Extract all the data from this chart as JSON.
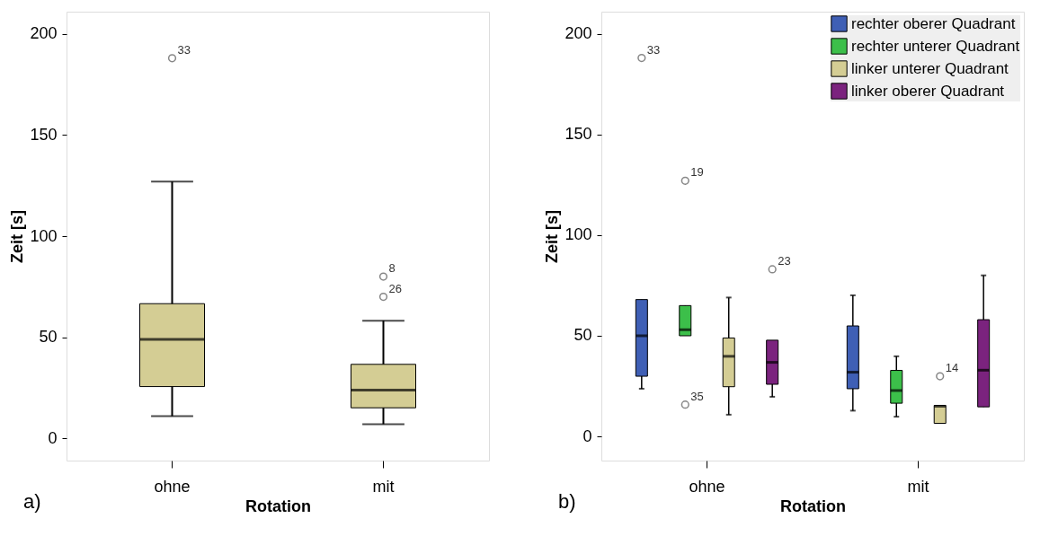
{
  "chart_data": [
    {
      "type": "box",
      "categories": [
        "ohne",
        "mit"
      ],
      "xlabel": "Rotation",
      "ylabel": "Zeit [s]",
      "ylim": [
        -11,
        211
      ],
      "yticks": [
        0,
        50,
        100,
        150,
        200
      ],
      "grid": false,
      "legend": false,
      "series": [
        {
          "color": "#d4cd94",
          "boxes": [
            {
              "low": 11,
              "q1": 25.6,
              "median": 48.9,
              "q3": 66.6,
              "high": 127,
              "outliers": [
                188
              ]
            },
            {
              "low": 7,
              "q1": 15.1,
              "median": 23.8,
              "q3": 36.6,
              "high": 58.2,
              "outliers": [
                80,
                70
              ]
            }
          ]
        }
      ],
      "annotations": [
        "33",
        "8",
        "26",
        "a)"
      ]
    },
    {
      "type": "box",
      "categories": [
        "ohne",
        "mit"
      ],
      "xlabel": "Rotation",
      "ylabel": "Zeit [s]",
      "ylim": [
        -12,
        211
      ],
      "yticks": [
        0,
        50,
        100,
        150,
        200
      ],
      "grid": false,
      "legend": "top right",
      "series": [
        {
          "name": "rechter oberer Quadrant",
          "color": "#3f5fb5",
          "boxes": [
            {
              "low": 23.7,
              "q1": 29.9,
              "median": 50,
              "q3": 68,
              "high": 68,
              "outliers": [
                188
              ]
            },
            {
              "low": 12.8,
              "q1": 23.7,
              "median": 31.9,
              "q3": 54.9,
              "high": 70.1
            }
          ]
        },
        {
          "name": "rechter unterer Quadrant",
          "color": "#3cbf4a",
          "boxes": [
            {
              "low": 50,
              "q1": 50,
              "median": 53,
              "q3": 65,
              "high": 65,
              "outliers": [
                127,
                15.8
              ]
            },
            {
              "low": 9.8,
              "q1": 16.5,
              "median": 22.8,
              "q3": 32.8,
              "high": 39.8
            }
          ]
        },
        {
          "name": "linker unterer Quadrant",
          "color": "#d4cd94",
          "boxes": [
            {
              "low": 10.8,
              "q1": 24.7,
              "median": 39.8,
              "q3": 48.9,
              "high": 69
            },
            {
              "low": 6.5,
              "q1": 6.5,
              "median": 15,
              "q3": 15.4,
              "high": 15.4,
              "outliers": [
                29.9
              ]
            }
          ]
        },
        {
          "name": "linker oberer Quadrant",
          "color": "#7b237e",
          "boxes": [
            {
              "low": 19.7,
              "q1": 25.9,
              "median": 36.8,
              "q3": 47.8,
              "high": 47.8,
              "outliers": [
                83
              ]
            },
            {
              "low": 14.7,
              "q1": 14.7,
              "median": 32.9,
              "q3": 58,
              "high": 80
            }
          ]
        }
      ],
      "annotations": [
        "33",
        "19",
        "35",
        "14",
        "23",
        "b)"
      ]
    }
  ]
}
